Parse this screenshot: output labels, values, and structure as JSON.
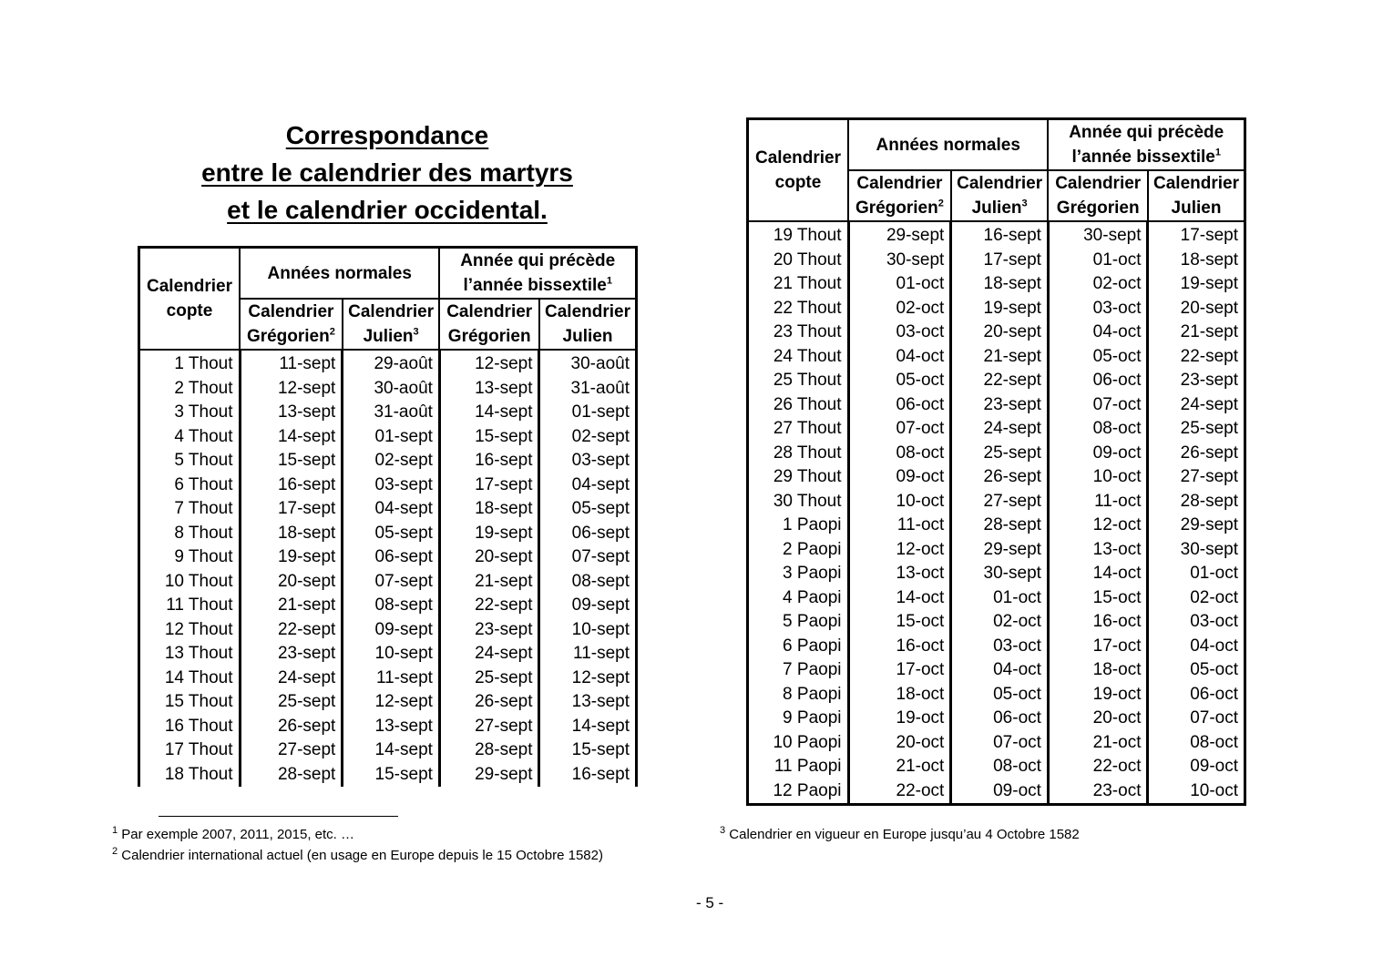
{
  "title": {
    "line1": "Correspondance",
    "line2": "entre le calendrier des martyrs",
    "line3": "et le calendrier occidental."
  },
  "headers": {
    "coptic": "Calendrier copte",
    "normal_years": "Années normales",
    "pre_leap": "Année qui précède l’année bissextile",
    "pre_leap_sup": "1",
    "gregorian": "Calendrier Grégorien",
    "gregorian_sup": "2",
    "julian": "Calendrier Julien",
    "julian_sup": "3"
  },
  "left_table": {
    "rows": [
      [
        "1 Thout",
        "11-sept",
        "29-août",
        "12-sept",
        "30-août"
      ],
      [
        "2 Thout",
        "12-sept",
        "30-août",
        "13-sept",
        "31-août"
      ],
      [
        "3 Thout",
        "13-sept",
        "31-août",
        "14-sept",
        "01-sept"
      ],
      [
        "4 Thout",
        "14-sept",
        "01-sept",
        "15-sept",
        "02-sept"
      ],
      [
        "5 Thout",
        "15-sept",
        "02-sept",
        "16-sept",
        "03-sept"
      ],
      [
        "6 Thout",
        "16-sept",
        "03-sept",
        "17-sept",
        "04-sept"
      ],
      [
        "7 Thout",
        "17-sept",
        "04-sept",
        "18-sept",
        "05-sept"
      ],
      [
        "8 Thout",
        "18-sept",
        "05-sept",
        "19-sept",
        "06-sept"
      ],
      [
        "9 Thout",
        "19-sept",
        "06-sept",
        "20-sept",
        "07-sept"
      ],
      [
        "10 Thout",
        "20-sept",
        "07-sept",
        "21-sept",
        "08-sept"
      ],
      [
        "11 Thout",
        "21-sept",
        "08-sept",
        "22-sept",
        "09-sept"
      ],
      [
        "12 Thout",
        "22-sept",
        "09-sept",
        "23-sept",
        "10-sept"
      ],
      [
        "13 Thout",
        "23-sept",
        "10-sept",
        "24-sept",
        "11-sept"
      ],
      [
        "14 Thout",
        "24-sept",
        "11-sept",
        "25-sept",
        "12-sept"
      ],
      [
        "15 Thout",
        "25-sept",
        "12-sept",
        "26-sept",
        "13-sept"
      ],
      [
        "16 Thout",
        "26-sept",
        "13-sept",
        "27-sept",
        "14-sept"
      ],
      [
        "17 Thout",
        "27-sept",
        "14-sept",
        "28-sept",
        "15-sept"
      ],
      [
        "18 Thout",
        "28-sept",
        "15-sept",
        "29-sept",
        "16-sept"
      ]
    ]
  },
  "right_table": {
    "rows": [
      [
        "19 Thout",
        "29-sept",
        "16-sept",
        "30-sept",
        "17-sept"
      ],
      [
        "20 Thout",
        "30-sept",
        "17-sept",
        "01-oct",
        "18-sept"
      ],
      [
        "21 Thout",
        "01-oct",
        "18-sept",
        "02-oct",
        "19-sept"
      ],
      [
        "22 Thout",
        "02-oct",
        "19-sept",
        "03-oct",
        "20-sept"
      ],
      [
        "23 Thout",
        "03-oct",
        "20-sept",
        "04-oct",
        "21-sept"
      ],
      [
        "24 Thout",
        "04-oct",
        "21-sept",
        "05-oct",
        "22-sept"
      ],
      [
        "25 Thout",
        "05-oct",
        "22-sept",
        "06-oct",
        "23-sept"
      ],
      [
        "26 Thout",
        "06-oct",
        "23-sept",
        "07-oct",
        "24-sept"
      ],
      [
        "27 Thout",
        "07-oct",
        "24-sept",
        "08-oct",
        "25-sept"
      ],
      [
        "28 Thout",
        "08-oct",
        "25-sept",
        "09-oct",
        "26-sept"
      ],
      [
        "29 Thout",
        "09-oct",
        "26-sept",
        "10-oct",
        "27-sept"
      ],
      [
        "30 Thout",
        "10-oct",
        "27-sept",
        "11-oct",
        "28-sept"
      ],
      [
        "1 Paopi",
        "11-oct",
        "28-sept",
        "12-oct",
        "29-sept"
      ],
      [
        "2 Paopi",
        "12-oct",
        "29-sept",
        "13-oct",
        "30-sept"
      ],
      [
        "3 Paopi",
        "13-oct",
        "30-sept",
        "14-oct",
        "01-oct"
      ],
      [
        "4 Paopi",
        "14-oct",
        "01-oct",
        "15-oct",
        "02-oct"
      ],
      [
        "5 Paopi",
        "15-oct",
        "02-oct",
        "16-oct",
        "03-oct"
      ],
      [
        "6 Paopi",
        "16-oct",
        "03-oct",
        "17-oct",
        "04-oct"
      ],
      [
        "7 Paopi",
        "17-oct",
        "04-oct",
        "18-oct",
        "05-oct"
      ],
      [
        "8 Paopi",
        "18-oct",
        "05-oct",
        "19-oct",
        "06-oct"
      ],
      [
        "9 Paopi",
        "19-oct",
        "06-oct",
        "20-oct",
        "07-oct"
      ],
      [
        "10 Paopi",
        "20-oct",
        "07-oct",
        "21-oct",
        "08-oct"
      ],
      [
        "11 Paopi",
        "21-oct",
        "08-oct",
        "22-oct",
        "09-oct"
      ],
      [
        "12 Paopi",
        "22-oct",
        "09-oct",
        "23-oct",
        "10-oct"
      ]
    ]
  },
  "footnotes": {
    "fn1_mark": "1",
    "fn1": "Par exemple 2007, 2011, 2015, etc. …",
    "fn2_mark": "2",
    "fn2": "Calendrier international actuel (en usage en Europe depuis le 15 Octobre 1582)",
    "fn3_mark": "3",
    "fn3": "Calendrier en vigueur en Europe jusqu’au 4 Octobre 1582"
  },
  "page_number": "- 5 -"
}
